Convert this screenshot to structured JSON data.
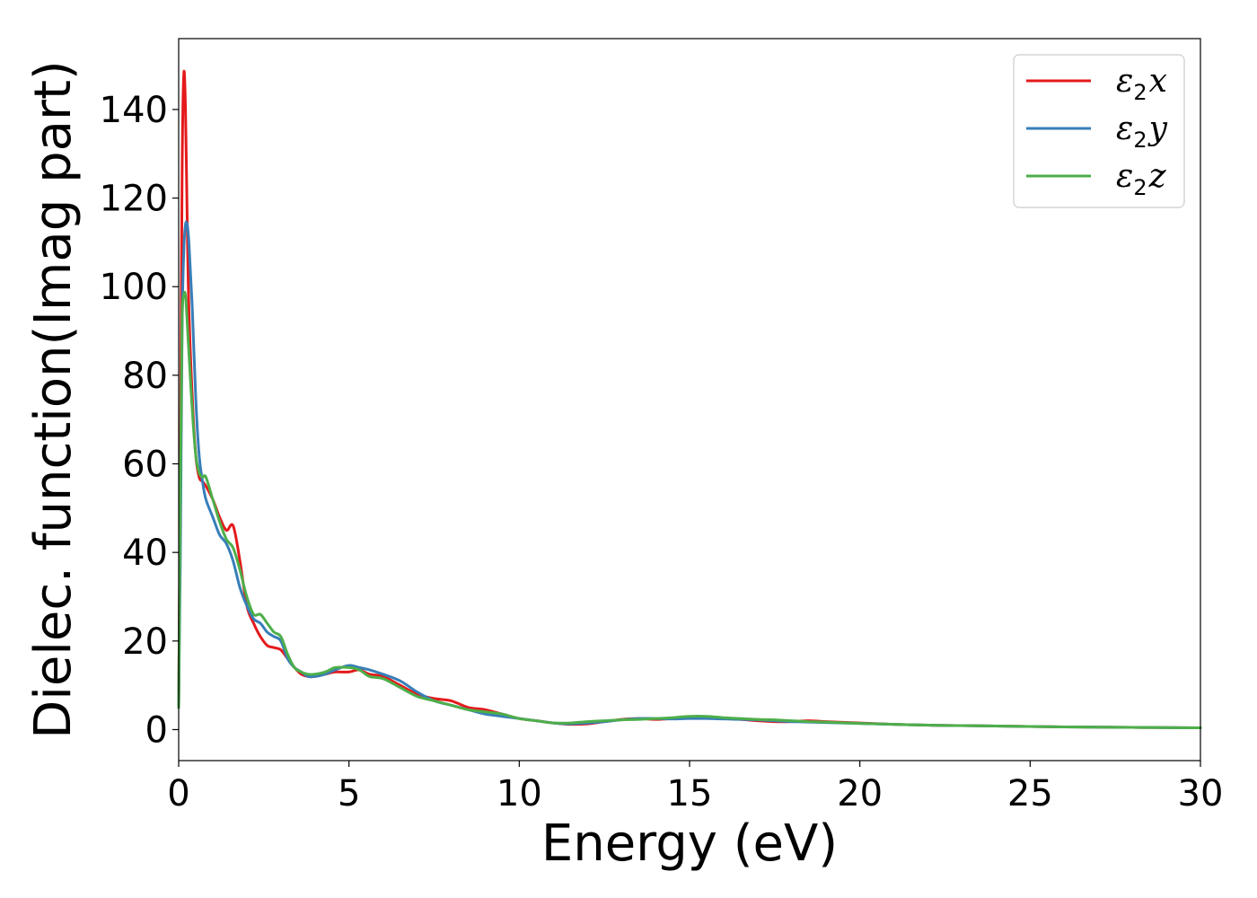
{
  "chart_data": {
    "type": "line",
    "title": "",
    "xlabel": "Energy (eV)",
    "ylabel": "Dielec. function(Imag part)",
    "xlim": [
      0,
      30
    ],
    "ylim": [
      -7,
      156
    ],
    "xticks": [
      0,
      5,
      10,
      15,
      20,
      25,
      30
    ],
    "xtick_labels": [
      "0",
      "5",
      "10",
      "15",
      "20",
      "25",
      "30"
    ],
    "yticks": [
      0,
      20,
      40,
      60,
      80,
      100,
      120,
      140
    ],
    "ytick_labels": [
      "0",
      "20",
      "40",
      "60",
      "80",
      "100",
      "120",
      "140"
    ],
    "grid": false,
    "legend_position": "top-right",
    "series": [
      {
        "name": "ε₂x",
        "legend_main": "ε",
        "legend_sub": "2",
        "legend_suffix": "x",
        "color": "#e41a1c",
        "x": [
          0,
          0.05,
          0.1,
          0.15,
          0.2,
          0.25,
          0.3,
          0.4,
          0.5,
          0.6,
          0.7,
          0.8,
          1.0,
          1.2,
          1.4,
          1.6,
          1.8,
          2.0,
          2.2,
          2.4,
          2.6,
          2.8,
          3.0,
          3.2,
          3.4,
          3.6,
          3.8,
          4.0,
          4.3,
          4.6,
          5.0,
          5.3,
          5.6,
          6.0,
          6.5,
          7.0,
          7.5,
          8.0,
          8.5,
          9.0,
          9.5,
          10.0,
          10.5,
          11.0,
          11.5,
          12.0,
          12.5,
          13.0,
          13.5,
          14.0,
          14.5,
          15.0,
          15.5,
          16.0,
          16.5,
          17.0,
          17.5,
          18.0,
          18.5,
          19.0,
          20.0,
          21.0,
          22.0,
          23.0,
          24.0,
          25.0,
          26.0,
          27.0,
          28.0,
          29.0,
          30.0
        ],
        "y": [
          5,
          60,
          125,
          148,
          140,
          115,
          95,
          75,
          62,
          57,
          56,
          55,
          52,
          48,
          45,
          46,
          38,
          28,
          24,
          21,
          19,
          18.5,
          18,
          16,
          14,
          12.5,
          12,
          12,
          12.5,
          13,
          13,
          13.5,
          12.5,
          12,
          10,
          8,
          7,
          6.5,
          5,
          4.5,
          3.5,
          2.5,
          2,
          1.5,
          1.2,
          1.3,
          1.8,
          2.3,
          2.5,
          2.3,
          2.5,
          2.8,
          2.7,
          2.5,
          2.3,
          2.0,
          1.8,
          1.8,
          2.0,
          1.8,
          1.5,
          1.2,
          1.0,
          0.9,
          0.8,
          0.7,
          0.6,
          0.55,
          0.5,
          0.45,
          0.4
        ]
      },
      {
        "name": "ε₂y",
        "legend_main": "ε",
        "legend_sub": "2",
        "legend_suffix": "y",
        "color": "#377eb8",
        "x": [
          0,
          0.05,
          0.1,
          0.15,
          0.2,
          0.25,
          0.3,
          0.4,
          0.5,
          0.6,
          0.7,
          0.8,
          1.0,
          1.2,
          1.4,
          1.6,
          1.8,
          2.0,
          2.2,
          2.4,
          2.6,
          2.8,
          3.0,
          3.2,
          3.4,
          3.6,
          3.8,
          4.0,
          4.3,
          4.6,
          5.0,
          5.3,
          5.6,
          6.0,
          6.5,
          7.0,
          7.5,
          8.0,
          8.5,
          9.0,
          9.5,
          10.0,
          10.5,
          11.0,
          11.5,
          12.0,
          12.5,
          13.0,
          13.5,
          14.0,
          14.5,
          15.0,
          15.5,
          16.0,
          16.5,
          17.0,
          17.5,
          18.0,
          18.5,
          19.0,
          20.0,
          21.0,
          22.0,
          23.0,
          24.0,
          25.0,
          26.0,
          27.0,
          28.0,
          29.0,
          30.0
        ],
        "y": [
          5,
          40,
          90,
          108,
          114,
          114,
          110,
          95,
          75,
          62,
          56,
          52,
          48,
          44,
          42,
          38,
          32,
          28,
          25,
          24,
          22,
          21,
          20,
          16,
          14,
          13,
          12,
          12,
          12.5,
          13.5,
          14.5,
          14,
          13.5,
          12.5,
          11,
          8.5,
          6.5,
          5.5,
          4.5,
          3.5,
          3.0,
          2.5,
          2.0,
          1.5,
          1.3,
          1.5,
          1.8,
          2.2,
          2.5,
          2.5,
          2.4,
          2.5,
          2.5,
          2.4,
          2.3,
          2.2,
          2.0,
          1.8,
          1.7,
          1.6,
          1.4,
          1.2,
          1.0,
          0.9,
          0.8,
          0.7,
          0.6,
          0.55,
          0.5,
          0.45,
          0.4
        ]
      },
      {
        "name": "ε₂z",
        "legend_main": "ε",
        "legend_sub": "2",
        "legend_suffix": "z",
        "color": "#4daf4a",
        "x": [
          0,
          0.05,
          0.1,
          0.15,
          0.2,
          0.25,
          0.3,
          0.4,
          0.5,
          0.6,
          0.7,
          0.8,
          1.0,
          1.2,
          1.4,
          1.6,
          1.8,
          2.0,
          2.2,
          2.4,
          2.6,
          2.8,
          3.0,
          3.2,
          3.4,
          3.6,
          3.8,
          4.0,
          4.3,
          4.6,
          5.0,
          5.3,
          5.6,
          6.0,
          6.5,
          7.0,
          7.5,
          8.0,
          8.5,
          9.0,
          9.5,
          10.0,
          10.5,
          11.0,
          11.5,
          12.0,
          12.5,
          13.0,
          13.5,
          14.0,
          14.5,
          15.0,
          15.5,
          16.0,
          16.5,
          17.0,
          17.5,
          18.0,
          18.5,
          19.0,
          20.0,
          21.0,
          22.0,
          23.0,
          24.0,
          25.0,
          26.0,
          27.0,
          28.0,
          29.0,
          30.0
        ],
        "y": [
          5,
          55,
          92,
          98,
          98,
          92,
          85,
          72,
          62,
          58,
          57,
          57,
          52,
          47,
          43,
          41,
          36,
          30,
          26,
          26,
          24,
          22,
          21,
          17,
          14,
          13,
          12.5,
          12.5,
          13,
          14,
          14,
          13.5,
          12,
          11.5,
          9.5,
          7.5,
          6.5,
          5.5,
          4.5,
          4.0,
          3.5,
          2.5,
          2.0,
          1.5,
          1.5,
          1.8,
          2.0,
          2.2,
          2.3,
          2.5,
          2.7,
          3.0,
          3.0,
          2.7,
          2.5,
          2.3,
          2.2,
          2.0,
          1.8,
          1.7,
          1.4,
          1.2,
          1.0,
          0.9,
          0.8,
          0.7,
          0.6,
          0.55,
          0.5,
          0.45,
          0.4
        ]
      }
    ]
  }
}
